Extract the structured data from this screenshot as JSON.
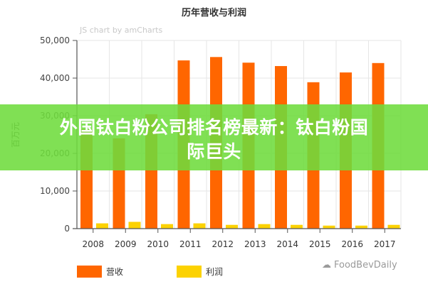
{
  "chart_data": {
    "type": "bar",
    "title": "历年营收与利润",
    "credit": "JS chart by amCharts",
    "xlabel": "",
    "ylabel": "百万元",
    "ylim": [
      0,
      50000
    ],
    "yticks": [
      0,
      10000,
      20000,
      30000,
      40000,
      50000
    ],
    "ytick_labels": [
      "0",
      "10,000",
      "20,000",
      "30,000",
      "40,000",
      "50,000"
    ],
    "grid": true,
    "legend_position": "bottom",
    "categories": [
      "2008",
      "2009",
      "2010",
      "2011",
      "2012",
      "2013",
      "2014",
      "2015",
      "2016",
      "2017"
    ],
    "series": [
      {
        "name": "营收",
        "color": "#ff6600",
        "values": [
          26400,
          24000,
          30400,
          44700,
          45600,
          44100,
          43200,
          38900,
          41500,
          44000
        ]
      },
      {
        "name": "利润",
        "color": "#fcd202",
        "values": [
          1400,
          1800,
          1200,
          1400,
          1000,
          1200,
          1000,
          800,
          800,
          1000
        ]
      }
    ]
  },
  "overlay": {
    "banner_line1": "外国钛白粉公司排名榜最新：钛白粉国",
    "banner_line2": "际巨头",
    "watermark": "FoodBevDaily"
  }
}
